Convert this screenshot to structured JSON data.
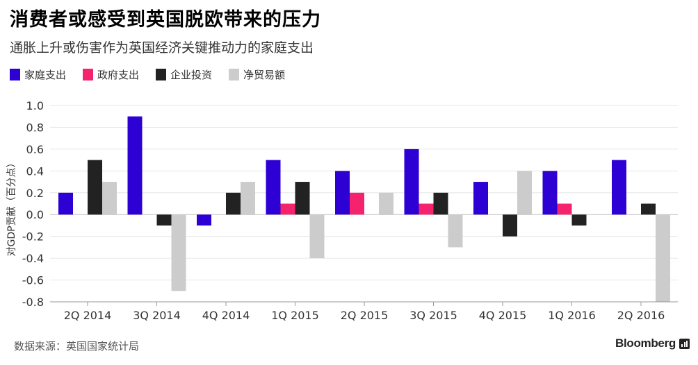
{
  "title": "消费者或感受到英国脱欧带来的压力",
  "subtitle": "通胀上升或伤害作为英国经济关键推动力的家庭支出",
  "source": "数据来源：英国国家统计局",
  "brand": "Bloomberg",
  "brand_icon": "bloomberg-chart-icon",
  "chart_data": {
    "type": "bar",
    "categories": [
      "2Q 2014",
      "3Q 2014",
      "4Q 2014",
      "1Q 2015",
      "2Q 2015",
      "3Q 2015",
      "4Q 2015",
      "1Q 2016",
      "2Q 2016"
    ],
    "series": [
      {
        "name": "家庭支出",
        "color": "#2d00d4",
        "values": [
          0.2,
          0.9,
          -0.1,
          0.5,
          0.4,
          0.6,
          0.3,
          0.4,
          0.5
        ]
      },
      {
        "name": "政府支出",
        "color": "#f5236e",
        "values": [
          0,
          0,
          0,
          0.1,
          0.2,
          0.1,
          0,
          0.1,
          0
        ]
      },
      {
        "name": "企业投资",
        "color": "#222222",
        "values": [
          0.5,
          -0.1,
          0.2,
          0.3,
          0,
          0.2,
          -0.2,
          -0.1,
          0.1
        ]
      },
      {
        "name": "净贸易额",
        "color": "#cccccc",
        "values": [
          0.3,
          -0.7,
          0.3,
          -0.4,
          0.2,
          -0.3,
          0.4,
          0,
          -0.8
        ]
      }
    ],
    "yticks": [
      "1.0",
      "0.8",
      "0.6",
      "0.4",
      "0.2",
      "0.0",
      "-0.2",
      "-0.4",
      "-0.6",
      "-0.8"
    ],
    "ylim": [
      -0.8,
      1.0
    ],
    "ylabel": "对GDP贡献（百分点）",
    "grid": true,
    "legend": "top-left"
  }
}
